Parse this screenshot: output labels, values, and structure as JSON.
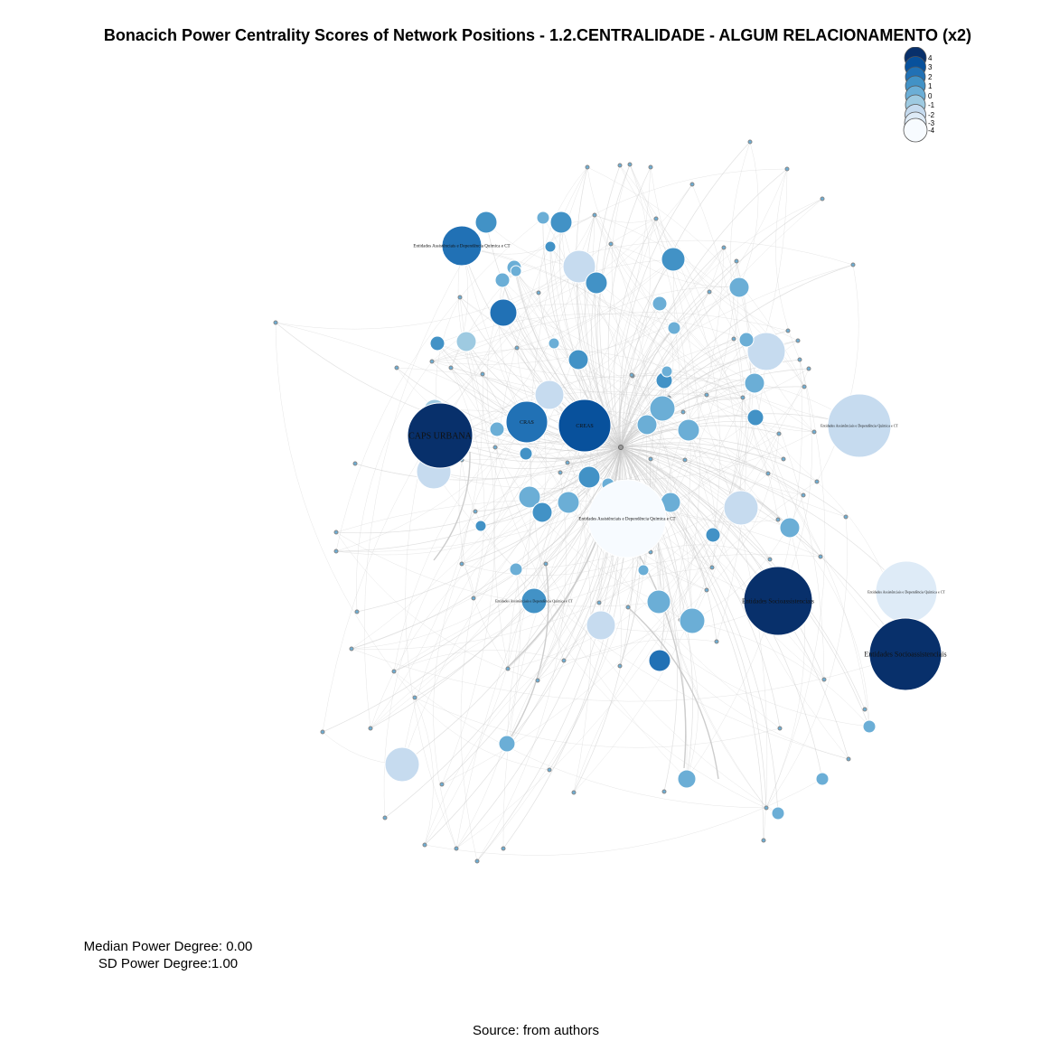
{
  "title": "Bonacich Power Centrality Scores of Network Positions - 1.2.CENTRALIDADE - ALGUM RELACIONAMENTO (x2)",
  "legend": {
    "levels": [
      "4",
      "3",
      "2",
      "1",
      "0",
      "-1",
      "-2",
      "-3",
      "-4"
    ],
    "colors": [
      "#08306b",
      "#08519c",
      "#2171b5",
      "#4292c6",
      "#6baed6",
      "#9ecae1",
      "#c6dbef",
      "#deebf7",
      "#f7fbff"
    ]
  },
  "stats": {
    "median": "Median Power Degree: 0.00",
    "sd": "SD Power Degree:1.00"
  },
  "source": "Source: from authors",
  "network": {
    "hub_color": "#999999",
    "edge_color": "#c8c8c8",
    "labeled_nodes": [
      {
        "label": "CAPS URBANA",
        "level": 4
      },
      {
        "label": "CREAS",
        "level": 3
      },
      {
        "label": "CRAS",
        "level": 2
      },
      {
        "label": "Entidades Assistênciais e Dependência Química e CT",
        "level": -4
      },
      {
        "label": "Entidades Assistênciais e Dependência Química e CT",
        "level": 2
      },
      {
        "label": "Entidades Assistênciais e Dependência Química e CT",
        "level": -2
      },
      {
        "label": "Entidades Assistênciais e Dependência Química e CT",
        "level": -3
      },
      {
        "label": "Entidades Assistênciais e Dependência Química e CT",
        "level": 1
      },
      {
        "label": "Entidades Socioassistenciais",
        "level": 4
      },
      {
        "label": "Entidades Socioassistenciais",
        "level": 4
      }
    ]
  }
}
